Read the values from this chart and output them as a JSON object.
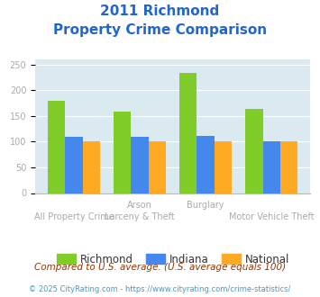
{
  "title_line1": "2011 Richmond",
  "title_line2": "Property Crime Comparison",
  "cat_labels_top": [
    "",
    "Arson",
    "Burglary",
    ""
  ],
  "cat_labels_bot": [
    "All Property Crime",
    "Larceny & Theft",
    "",
    "Motor Vehicle Theft"
  ],
  "richmond": [
    180,
    158,
    234,
    164
  ],
  "indiana": [
    110,
    110,
    111,
    100
  ],
  "national": [
    100,
    100,
    100,
    100
  ],
  "color_richmond": "#80cc28",
  "color_indiana": "#4488ee",
  "color_national": "#ffaa22",
  "ylim": [
    0,
    260
  ],
  "yticks": [
    0,
    50,
    100,
    150,
    200,
    250
  ],
  "plot_bg": "#daeaf0",
  "legend_labels": [
    "Richmond",
    "Indiana",
    "National"
  ],
  "footnote1": "Compared to U.S. average. (U.S. average equals 100)",
  "footnote2": "© 2025 CityRating.com - https://www.cityrating.com/crime-statistics/",
  "title_color": "#2266cc",
  "label_color": "#aaaaaa",
  "footnote1_color": "#993300",
  "footnote2_color": "#4499cc",
  "legend_text_color": "#333333"
}
